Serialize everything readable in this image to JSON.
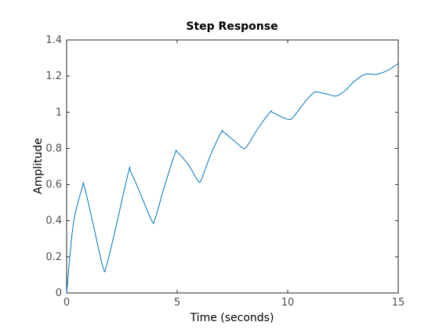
{
  "chart_data": {
    "type": "line",
    "title": "Step Response",
    "xlabel": "Time (seconds)",
    "ylabel": "Amplitude",
    "xlim": [
      0,
      15
    ],
    "ylim": [
      0,
      1.4
    ],
    "xticks": [
      0,
      5,
      10,
      15
    ],
    "xtick_labels": [
      "0",
      "5",
      "10",
      "15"
    ],
    "yticks": [
      0,
      0.2,
      0.4,
      0.6,
      0.8,
      1,
      1.2,
      1.4
    ],
    "ytick_labels": [
      "0",
      "0.2",
      "0.4",
      "0.6",
      "0.8",
      "1",
      "1.2",
      "1.4"
    ],
    "grid": false,
    "line_color": "#0072bd",
    "axis_color": "#262626",
    "series": [
      {
        "x": [
          0,
          0.3,
          0.7,
          0.8,
          1.2,
          1.65,
          1.8,
          2.2,
          2.8,
          2.9,
          3.3,
          3.85,
          4.0,
          4.4,
          4.9,
          5.0,
          5.5,
          5.95,
          6.1,
          6.5,
          7.0,
          7.1,
          7.6,
          8.0,
          8.2,
          8.6,
          9.2,
          9.3,
          9.8,
          10.1,
          10.3,
          10.8,
          11.2,
          11.4,
          11.8,
          12.2,
          12.6,
          13.0,
          13.5,
          14.0,
          14.5,
          15.0
        ],
        "y": [
          0,
          0.38,
          0.58,
          0.59,
          0.38,
          0.14,
          0.15,
          0.35,
          0.67,
          0.67,
          0.56,
          0.4,
          0.41,
          0.58,
          0.77,
          0.78,
          0.71,
          0.62,
          0.63,
          0.76,
          0.89,
          0.89,
          0.84,
          0.8,
          0.82,
          0.9,
          1.0,
          1.0,
          0.97,
          0.96,
          0.98,
          1.06,
          1.11,
          1.11,
          1.1,
          1.09,
          1.12,
          1.17,
          1.21,
          1.21,
          1.23,
          1.27
        ]
      }
    ]
  }
}
